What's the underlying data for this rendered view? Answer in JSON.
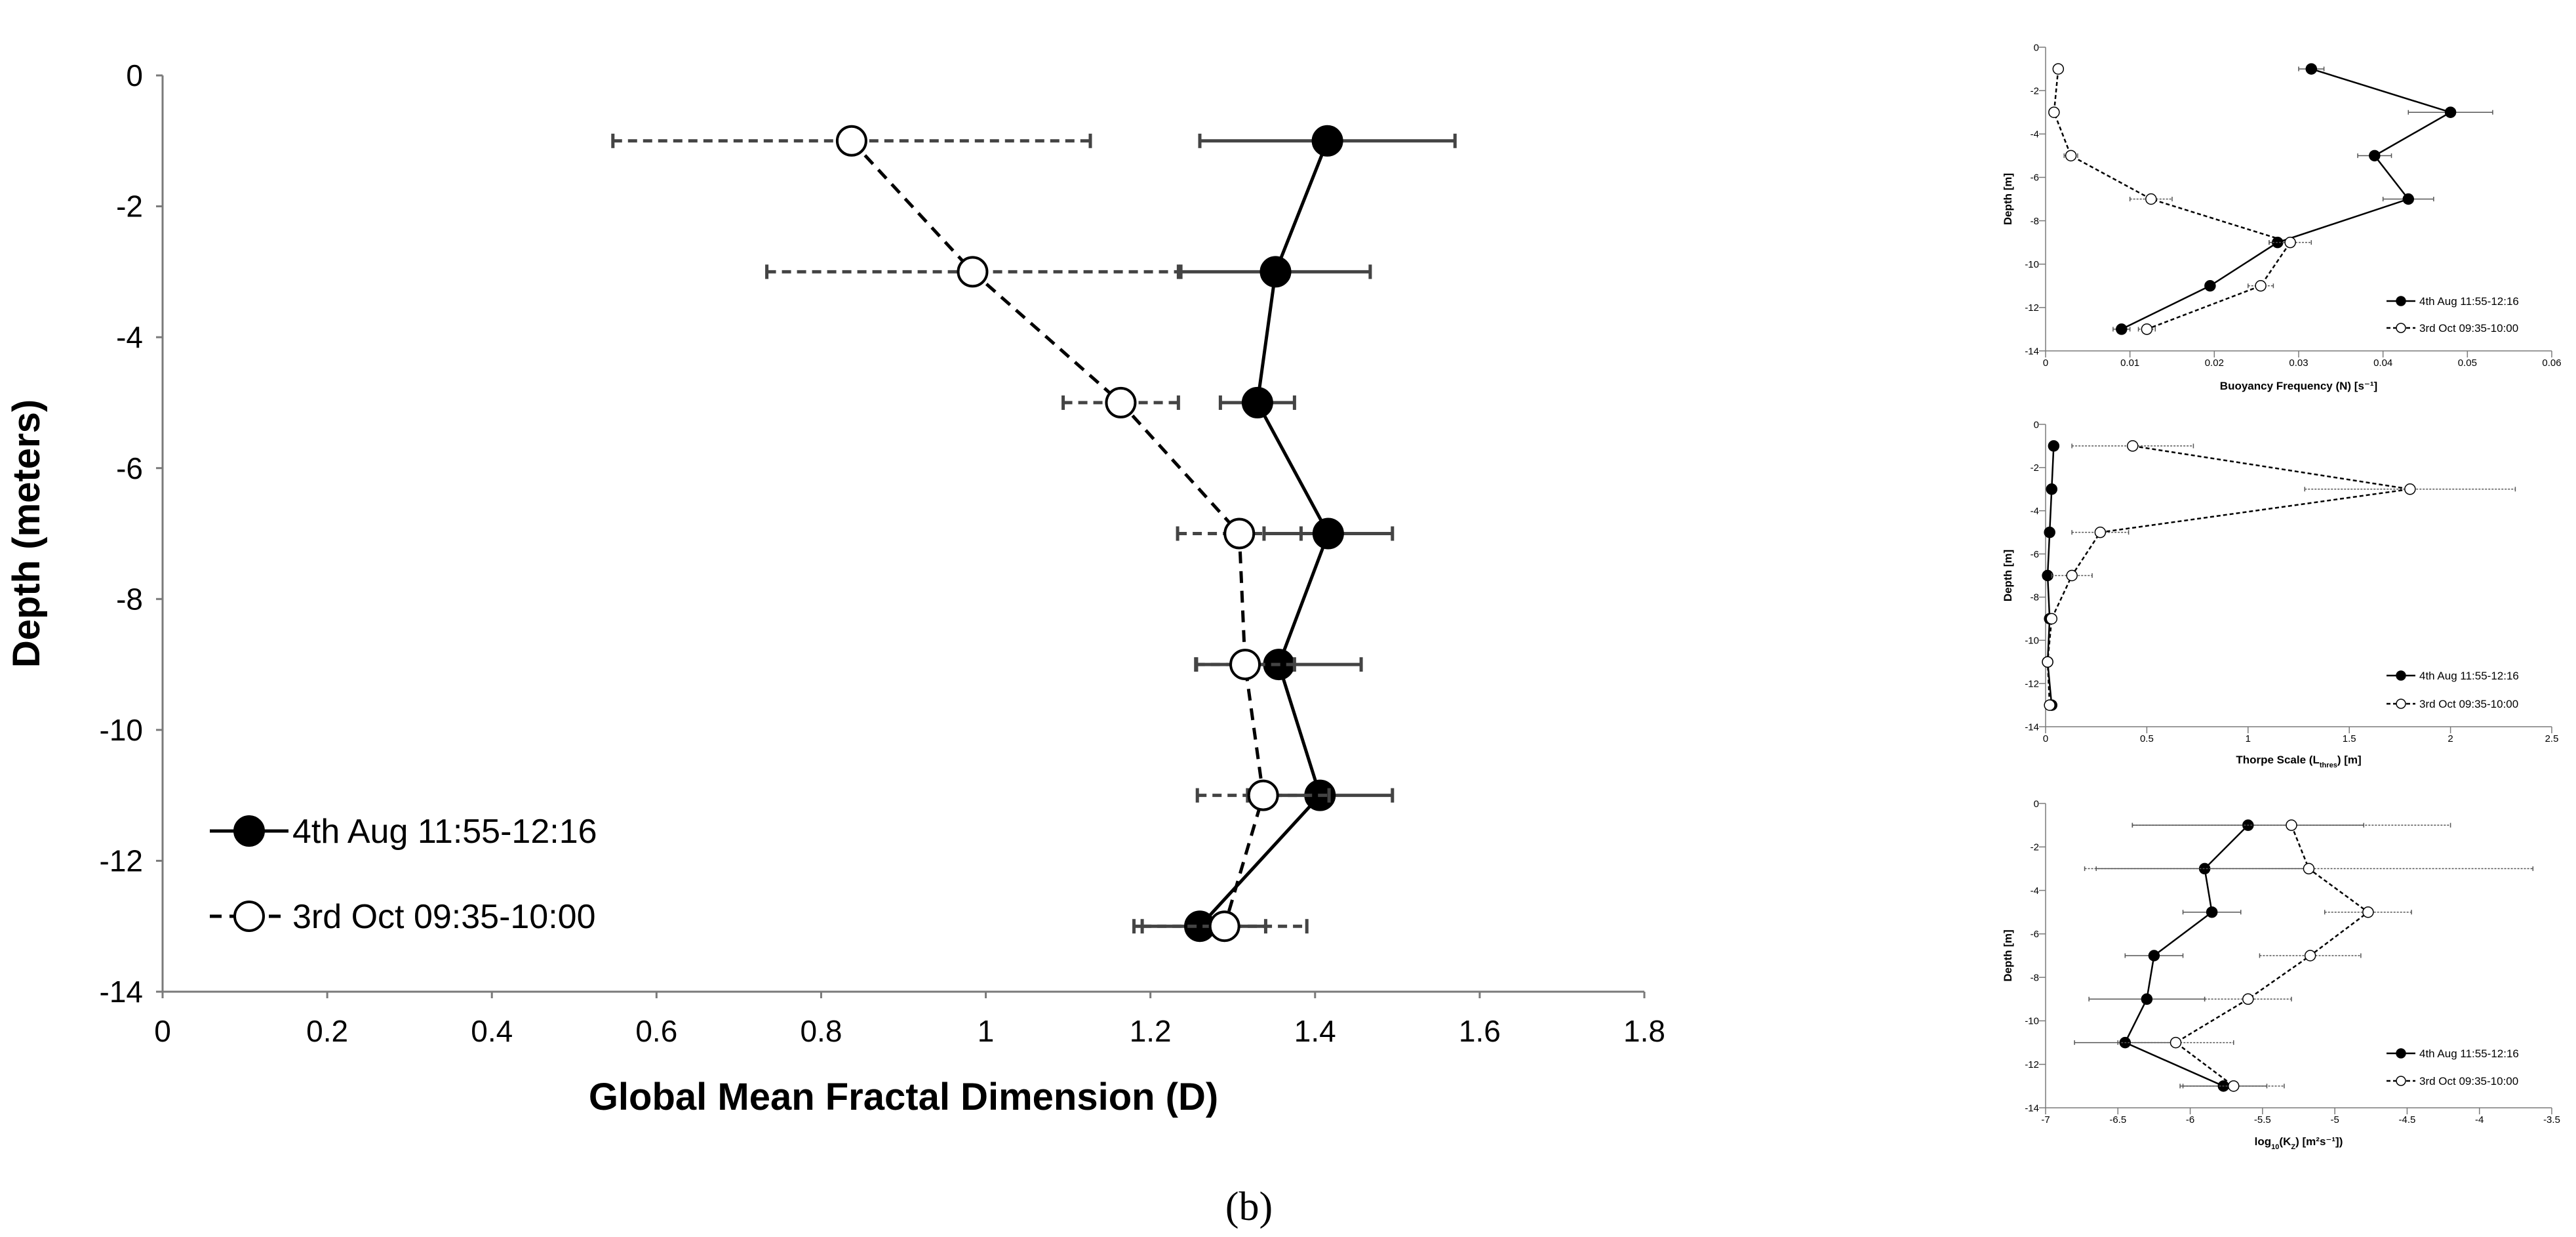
{
  "caption": "(b)",
  "chart_data": [
    {
      "id": "main",
      "type": "scatter",
      "title": "",
      "xlabel": "Global Mean Fractal Dimension (D)",
      "ylabel": "Depth (meters)",
      "xlim": [
        0,
        1.8
      ],
      "ylim": [
        -14,
        0
      ],
      "xticks": [
        0,
        0.2,
        0.4,
        0.6,
        0.8,
        1,
        1.2,
        1.4,
        1.6,
        1.8
      ],
      "yticks": [
        0,
        -2,
        -4,
        -6,
        -8,
        -10,
        -12,
        -14
      ],
      "xtick_labels": [
        "0",
        "0.2",
        "0.4",
        "0.6",
        "0.8",
        "1",
        "1.2",
        "1.4",
        "1.6",
        "1.8"
      ],
      "ytick_labels": [
        "0",
        "-2",
        "-4",
        "-6",
        "-8",
        "-10",
        "-12",
        "-14"
      ],
      "grid": false,
      "legend_position": "bottom-left",
      "series": [
        {
          "name": "4th Aug 11:55-12:16",
          "marker": "filled-circle",
          "line": "solid",
          "x": [
            1.415,
            1.352,
            1.33,
            1.416,
            1.356,
            1.406,
            1.26
          ],
          "y": [
            -1,
            -3,
            -5,
            -7,
            -9,
            -11,
            -13
          ],
          "xerr": [
            0.155,
            0.115,
            0.045,
            0.078,
            0.1,
            0.088,
            0.08
          ]
        },
        {
          "name": "3rd Oct 09:35-10:00",
          "marker": "open-circle",
          "line": "dashed",
          "x": [
            0.837,
            0.984,
            1.164,
            1.308,
            1.315,
            1.337,
            1.29
          ],
          "y": [
            -1,
            -3,
            -5,
            -7,
            -9,
            -11,
            -13
          ],
          "xerr": [
            0.29,
            0.25,
            0.07,
            0.075,
            0.06,
            0.08,
            0.1
          ]
        }
      ]
    },
    {
      "id": "inset1",
      "type": "scatter",
      "title": "",
      "xlabel": "Buoyancy Frequency (N) [s⁻¹]",
      "ylabel": "Depth [m]",
      "xlim": [
        0,
        0.06
      ],
      "ylim": [
        -14,
        0
      ],
      "xticks": [
        0,
        0.01,
        0.02,
        0.03,
        0.04,
        0.05,
        0.06
      ],
      "yticks": [
        0,
        -2,
        -4,
        -6,
        -8,
        -10,
        -12,
        -14
      ],
      "xtick_labels": [
        "0",
        "0.01",
        "0.02",
        "0.03",
        "0.04",
        "0.05",
        "0.06"
      ],
      "ytick_labels": [
        "0",
        "-2",
        "-4",
        "-6",
        "-8",
        "-10",
        "-12",
        "-14"
      ],
      "grid": false,
      "legend_position": "bottom-right",
      "series": [
        {
          "name": "4th Aug 11:55-12:16",
          "marker": "filled-circle",
          "line": "solid",
          "x": [
            0.0315,
            0.048,
            0.039,
            0.043,
            0.0275,
            0.0195,
            0.009
          ],
          "y": [
            -1,
            -3,
            -5,
            -7,
            -9,
            -11,
            -13
          ],
          "xerr": [
            0.0015,
            0.005,
            0.002,
            0.003,
            0.001,
            0,
            0.001
          ]
        },
        {
          "name": "3rd Oct 09:35-10:00",
          "marker": "open-circle",
          "line": "dashed",
          "x": [
            0.0015,
            0.001,
            0.003,
            0.0125,
            0.029,
            0.0255,
            0.012
          ],
          "y": [
            -1,
            -3,
            -5,
            -7,
            -9,
            -11,
            -13
          ],
          "xerr": [
            0,
            0,
            0.0008,
            0.0025,
            0.0025,
            0.0015,
            0.001
          ]
        }
      ]
    },
    {
      "id": "inset2",
      "type": "scatter",
      "title": "",
      "xlabel": "Thorpe Scale (L",
      "xlabel_sub": "thres",
      "xlabel_tail": ") [m]",
      "ylabel": "Depth [m]",
      "xlim": [
        0,
        2.5
      ],
      "ylim": [
        -14,
        0
      ],
      "xticks": [
        0,
        0.5,
        1,
        1.5,
        2,
        2.5
      ],
      "yticks": [
        0,
        -2,
        -4,
        -6,
        -8,
        -10,
        -12,
        -14
      ],
      "xtick_labels": [
        "0",
        "0.5",
        "1",
        "1.5",
        "2",
        "2.5"
      ],
      "ytick_labels": [
        "0",
        "-2",
        "-4",
        "-6",
        "-8",
        "-10",
        "-12",
        "-14"
      ],
      "grid": false,
      "legend_position": "bottom-right",
      "series": [
        {
          "name": "4th Aug 11:55-12:16",
          "marker": "filled-circle",
          "line": "solid",
          "x": [
            0.04,
            0.03,
            0.02,
            0.01,
            0.02,
            0.01,
            0.03
          ],
          "y": [
            -1,
            -3,
            -5,
            -7,
            -9,
            -11,
            -13
          ],
          "xerr": [
            0,
            0,
            0,
            0,
            0,
            0,
            0
          ]
        },
        {
          "name": "3rd Oct 09:35-10:00",
          "marker": "open-circle",
          "line": "dashed",
          "x": [
            0.43,
            1.8,
            0.27,
            0.13,
            0.03,
            0.01,
            0.02
          ],
          "y": [
            -1,
            -3,
            -5,
            -7,
            -9,
            -11,
            -13
          ],
          "xerr": [
            0.3,
            0.52,
            0.14,
            0.1,
            0,
            0,
            0
          ]
        }
      ]
    },
    {
      "id": "inset3",
      "type": "scatter",
      "title": "",
      "xlabel": "log",
      "xlabel_sub": "10",
      "xlabel_tail": "(K",
      "xlabel_sub2": "Z",
      "xlabel_tail2": ") [m²s⁻¹])",
      "ylabel": "Depth [m]",
      "xlim": [
        -7,
        -3.5
      ],
      "ylim": [
        -14,
        0
      ],
      "xticks": [
        -7,
        -6.5,
        -6,
        -5.5,
        -5,
        -4.5,
        -4,
        -3.5
      ],
      "yticks": [
        0,
        -2,
        -4,
        -6,
        -8,
        -10,
        -12,
        -14
      ],
      "xtick_labels": [
        "-7",
        "-6.5",
        "-6",
        "-5.5",
        "-5",
        "-4.5",
        "-4",
        "-3.5"
      ],
      "ytick_labels": [
        "0",
        "-2",
        "-4",
        "-6",
        "-8",
        "-10",
        "-12",
        "-14"
      ],
      "grid": false,
      "legend_position": "bottom-right",
      "series": [
        {
          "name": "4th Aug 11:55-12:16",
          "marker": "filled-circle",
          "line": "solid",
          "x": [
            -5.6,
            -5.9,
            -5.85,
            -6.25,
            -6.3,
            -6.45,
            -5.77
          ],
          "y": [
            -1,
            -3,
            -5,
            -7,
            -9,
            -11,
            -13
          ],
          "xerr": [
            0.8,
            0.75,
            0.2,
            0.2,
            0.4,
            0.35,
            0.3
          ]
        },
        {
          "name": "3rd Oct 09:35-10:00",
          "marker": "open-circle",
          "line": "dashed",
          "x": [
            -5.3,
            -5.18,
            -4.77,
            -5.17,
            -5.6,
            -6.1,
            -5.7
          ],
          "y": [
            -1,
            -3,
            -5,
            -7,
            -9,
            -11,
            -13
          ],
          "xerr": [
            1.1,
            1.55,
            0.3,
            0.35,
            0.3,
            0.4,
            0.35
          ]
        }
      ]
    }
  ]
}
